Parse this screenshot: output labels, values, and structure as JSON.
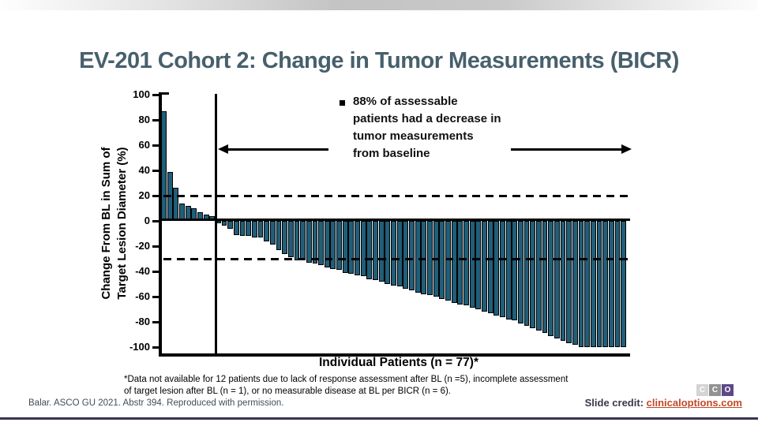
{
  "slide": {
    "title": "EV-201 Cohort 2: Change in Tumor Measurements (BICR)"
  },
  "chart_data": {
    "type": "bar",
    "subtype": "waterfall",
    "title": "",
    "xlabel": "Individual Patients (n = 77)*",
    "ylabel": "Change From BL in Sum of Target Lesion Diameter (%)",
    "ylabel_lines": [
      "Change From BL in Sum of",
      "Target Lesion Diameter (%)"
    ],
    "ylim": [
      -100,
      100
    ],
    "yticks": [
      100,
      80,
      60,
      40,
      20,
      0,
      -20,
      -40,
      -60,
      -80,
      -100
    ],
    "reference_dashed_lines": [
      20,
      -30
    ],
    "grid": false,
    "bar_color": "#205e79",
    "n_patients": 77,
    "values": [
      87,
      39,
      26,
      14,
      12,
      10,
      7,
      5,
      4,
      -2,
      -4,
      -6,
      -11,
      -12,
      -12,
      -13,
      -13,
      -16,
      -19,
      -23,
      -26,
      -29,
      -31,
      -31,
      -33,
      -34,
      -35,
      -37,
      -38,
      -39,
      -41,
      -42,
      -43,
      -44,
      -46,
      -47,
      -48,
      -50,
      -51,
      -52,
      -54,
      -55,
      -57,
      -58,
      -59,
      -60,
      -62,
      -63,
      -65,
      -66,
      -67,
      -69,
      -70,
      -72,
      -73,
      -75,
      -76,
      -78,
      -79,
      -81,
      -83,
      -85,
      -87,
      -89,
      -91,
      -93,
      -95,
      -97,
      -98,
      -100,
      -100,
      -100,
      -100,
      -100,
      -100,
      -100,
      -100
    ]
  },
  "annotation": {
    "lines": [
      "88% of assessable",
      "patients had a decrease in",
      "tumor measurements",
      "from baseline"
    ]
  },
  "footnote": {
    "lines": [
      "*Data not available for 12 patients due to lack of response assessment after BL (n =5), incomplete assessment",
      "of target lesion after BL (n = 1), or no measurable disease at BL per BICR (n = 6)."
    ]
  },
  "citation": "Balar. ASCO GU 2021. Abstr 394. Reproduced with permission.",
  "credit": {
    "label": "Slide credit: ",
    "link": "clinicaloptions.com"
  },
  "logo": {
    "tiles": [
      "C",
      "C",
      "O"
    ]
  }
}
